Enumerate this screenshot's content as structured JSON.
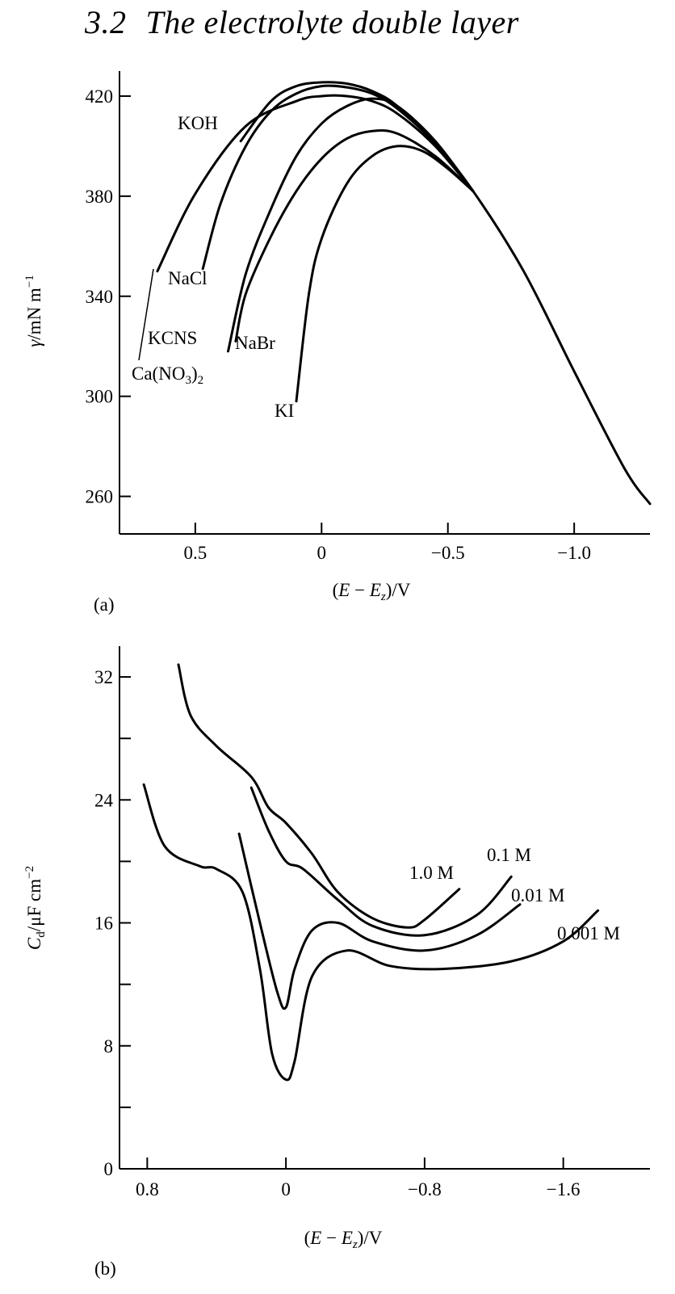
{
  "section": {
    "number": "3.2",
    "title": "The electrolyte double layer"
  },
  "chart_data": [
    {
      "panel_label": "(a)",
      "type": "line",
      "xlabel": "(E − E_z)/V",
      "ylabel": "γ/mN m⁻¹",
      "xlim": [
        0.8,
        -1.3
      ],
      "ylim": [
        245,
        430
      ],
      "x_ticks": [
        0.5,
        0,
        -0.5,
        -1.0
      ],
      "x_tick_labels": [
        "0.5",
        "0",
        "−0.5",
        "−1.0"
      ],
      "y_ticks": [
        260,
        300,
        340,
        380,
        420
      ],
      "y_tick_labels": [
        "260",
        "300",
        "340",
        "380",
        "420"
      ],
      "series": [
        {
          "name": "KOH",
          "x": [
            0.32,
            0.2,
            0.1,
            0.0,
            -0.1,
            -0.2,
            -0.3,
            -0.45,
            -0.6,
            -0.8,
            -1.0,
            -1.2,
            -1.3
          ],
          "y": [
            402,
            418,
            424,
            425.5,
            425,
            422,
            416,
            401,
            382,
            350,
            310,
            271,
            257
          ]
        },
        {
          "name": "NaCl",
          "x": [
            0.47,
            0.4,
            0.3,
            0.2,
            0.1,
            0.0,
            -0.1,
            -0.2,
            -0.3,
            -0.45,
            -0.6
          ],
          "y": [
            351,
            377,
            400,
            414,
            421,
            424,
            423.5,
            421,
            415,
            401,
            382
          ]
        },
        {
          "name": "Ca(NO₃)₂",
          "x": [
            0.65,
            0.5,
            0.3,
            0.1,
            0.0,
            -0.1,
            -0.2,
            -0.3,
            -0.45,
            -0.6
          ],
          "y": [
            350,
            381,
            408,
            418,
            420,
            420,
            418,
            413,
            400,
            382
          ]
        },
        {
          "name": "KCNS",
          "x": [
            0.37,
            0.3,
            0.2,
            0.1,
            0.0,
            -0.1,
            -0.2,
            -0.3,
            -0.45,
            -0.6
          ],
          "y": [
            318,
            349,
            375,
            396,
            409,
            416,
            419,
            416,
            402,
            382
          ]
        },
        {
          "name": "NaBr",
          "x": [
            0.34,
            0.3,
            0.2,
            0.1,
            0.0,
            -0.1,
            -0.2,
            -0.3,
            -0.45,
            -0.6
          ],
          "y": [
            322,
            341,
            364,
            382,
            395,
            403,
            406,
            405,
            396,
            382
          ]
        },
        {
          "name": "KI",
          "x": [
            0.1,
            0.05,
            0.0,
            -0.1,
            -0.2,
            -0.3,
            -0.4,
            -0.5,
            -0.6
          ],
          "y": [
            298,
            341,
            363,
            385,
            396,
            400,
            398,
            391,
            382
          ]
        }
      ],
      "legend_labels": [
        "KOH",
        "NaCl",
        "KCNS",
        "NaBr",
        "Ca(NO₃)₂",
        "KI"
      ]
    },
    {
      "panel_label": "(b)",
      "type": "line",
      "xlabel": "(E − E_z)/V",
      "ylabel": "C_d/μF cm⁻²",
      "xlim": [
        0.96,
        -2.1
      ],
      "ylim": [
        0,
        34
      ],
      "x_ticks": [
        0.8,
        0,
        -0.8,
        -1.6
      ],
      "x_tick_labels": [
        "0.8",
        "0",
        "−0.8",
        "−1.6"
      ],
      "y_ticks": [
        0,
        4,
        8,
        12,
        16,
        20,
        24,
        28,
        32
      ],
      "y_tick_labels": [
        "0",
        "",
        "8",
        "",
        "16",
        "",
        "24",
        "",
        "32"
      ],
      "series": [
        {
          "name": "1.0 M",
          "x": [
            0.62,
            0.55,
            0.4,
            0.2,
            0.1,
            0.0,
            -0.15,
            -0.3,
            -0.5,
            -0.7,
            -0.8,
            -1.0
          ],
          "y": [
            32.8,
            29.5,
            27.5,
            25.5,
            23.5,
            22.5,
            20.5,
            18.0,
            16.3,
            15.7,
            16.2,
            18.2
          ]
        },
        {
          "name": "0.1 M",
          "x": [
            0.2,
            0.1,
            0.0,
            -0.1,
            -0.3,
            -0.5,
            -0.8,
            -1.1,
            -1.3
          ],
          "y": [
            24.8,
            22.0,
            20.0,
            19.5,
            17.5,
            15.8,
            15.2,
            16.5,
            19.0
          ]
        },
        {
          "name": "0.01 M",
          "x": [
            0.27,
            0.15,
            0.05,
            0.0,
            -0.05,
            -0.15,
            -0.3,
            -0.5,
            -0.8,
            -1.1,
            -1.35
          ],
          "y": [
            21.8,
            16.0,
            11.5,
            10.5,
            13.0,
            15.5,
            16.0,
            14.8,
            14.2,
            15.2,
            17.2
          ]
        },
        {
          "name": "0.001 M",
          "x": [
            0.82,
            0.7,
            0.5,
            0.4,
            0.25,
            0.15,
            0.08,
            0.0,
            -0.05,
            -0.15,
            -0.35,
            -0.6,
            -0.9,
            -1.3,
            -1.6,
            -1.8
          ],
          "y": [
            25.0,
            21.0,
            19.7,
            19.5,
            18.0,
            13.0,
            7.5,
            5.8,
            7.0,
            12.5,
            14.2,
            13.2,
            13.0,
            13.5,
            14.8,
            16.8
          ]
        }
      ],
      "legend_labels": [
        "1.0 M",
        "0.1 M",
        "0.01 M",
        "0.001 M"
      ]
    }
  ]
}
